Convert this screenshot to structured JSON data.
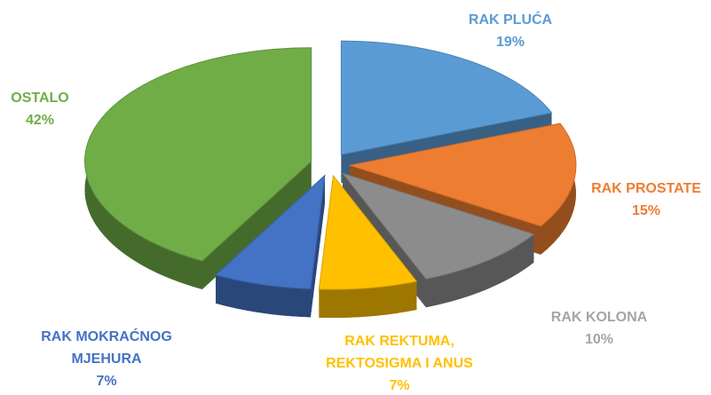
{
  "chart_data": {
    "type": "pie3d",
    "categories": [
      "RAK PLUĆA",
      "RAK PROSTATE",
      "RAK KOLONA",
      "RAK REKTUMA, REKTOSIGMA I ANUS",
      "RAK MOKRAĆNOG MJEHURA",
      "OSTALO"
    ],
    "values": [
      19,
      15,
      10,
      7,
      7,
      42
    ],
    "value_labels": [
      "19%",
      "15%",
      "10%",
      "7%",
      "7%",
      "42%"
    ],
    "colors": [
      "#5b9bd5",
      "#ed7d31",
      "#8c8c8c",
      "#ffc000",
      "#4472c4",
      "#70ad47"
    ],
    "label_colors": [
      "#5b9bd5",
      "#ed7d31",
      "#a5a5a5",
      "#ffc000",
      "#4472c4",
      "#70ad47"
    ]
  }
}
